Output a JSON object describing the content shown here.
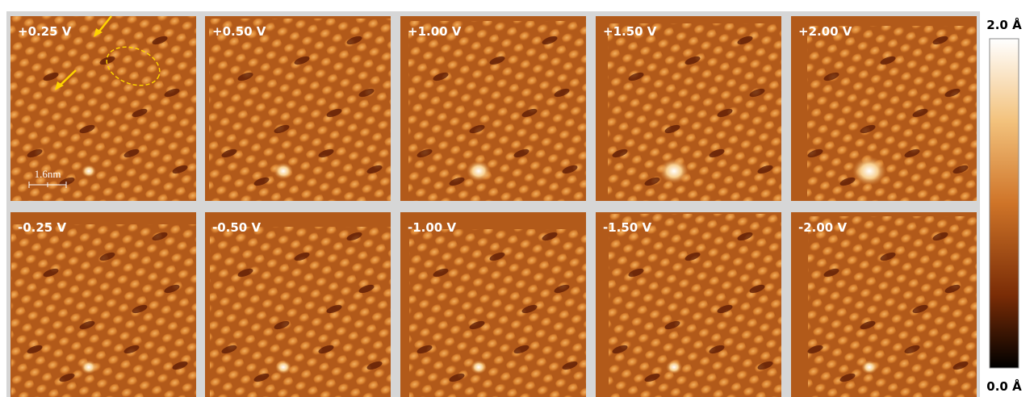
{
  "panels": [
    {
      "label": "+0.25 V"
    },
    {
      "label": "+0.50 V"
    },
    {
      "label": "+1.00 V"
    },
    {
      "label": "+1.50 V"
    },
    {
      "label": "+2.00 V"
    },
    {
      "label": "-0.25 V"
    },
    {
      "label": "-0.50 V"
    },
    {
      "label": "-1.00 V"
    },
    {
      "label": "-1.50 V"
    },
    {
      "label": "-2.00 V"
    }
  ],
  "scale_bar": {
    "label": "1.6nm"
  },
  "colorbar": {
    "top_label": "2.0 Å",
    "bottom_label": "0.0 Å"
  }
}
